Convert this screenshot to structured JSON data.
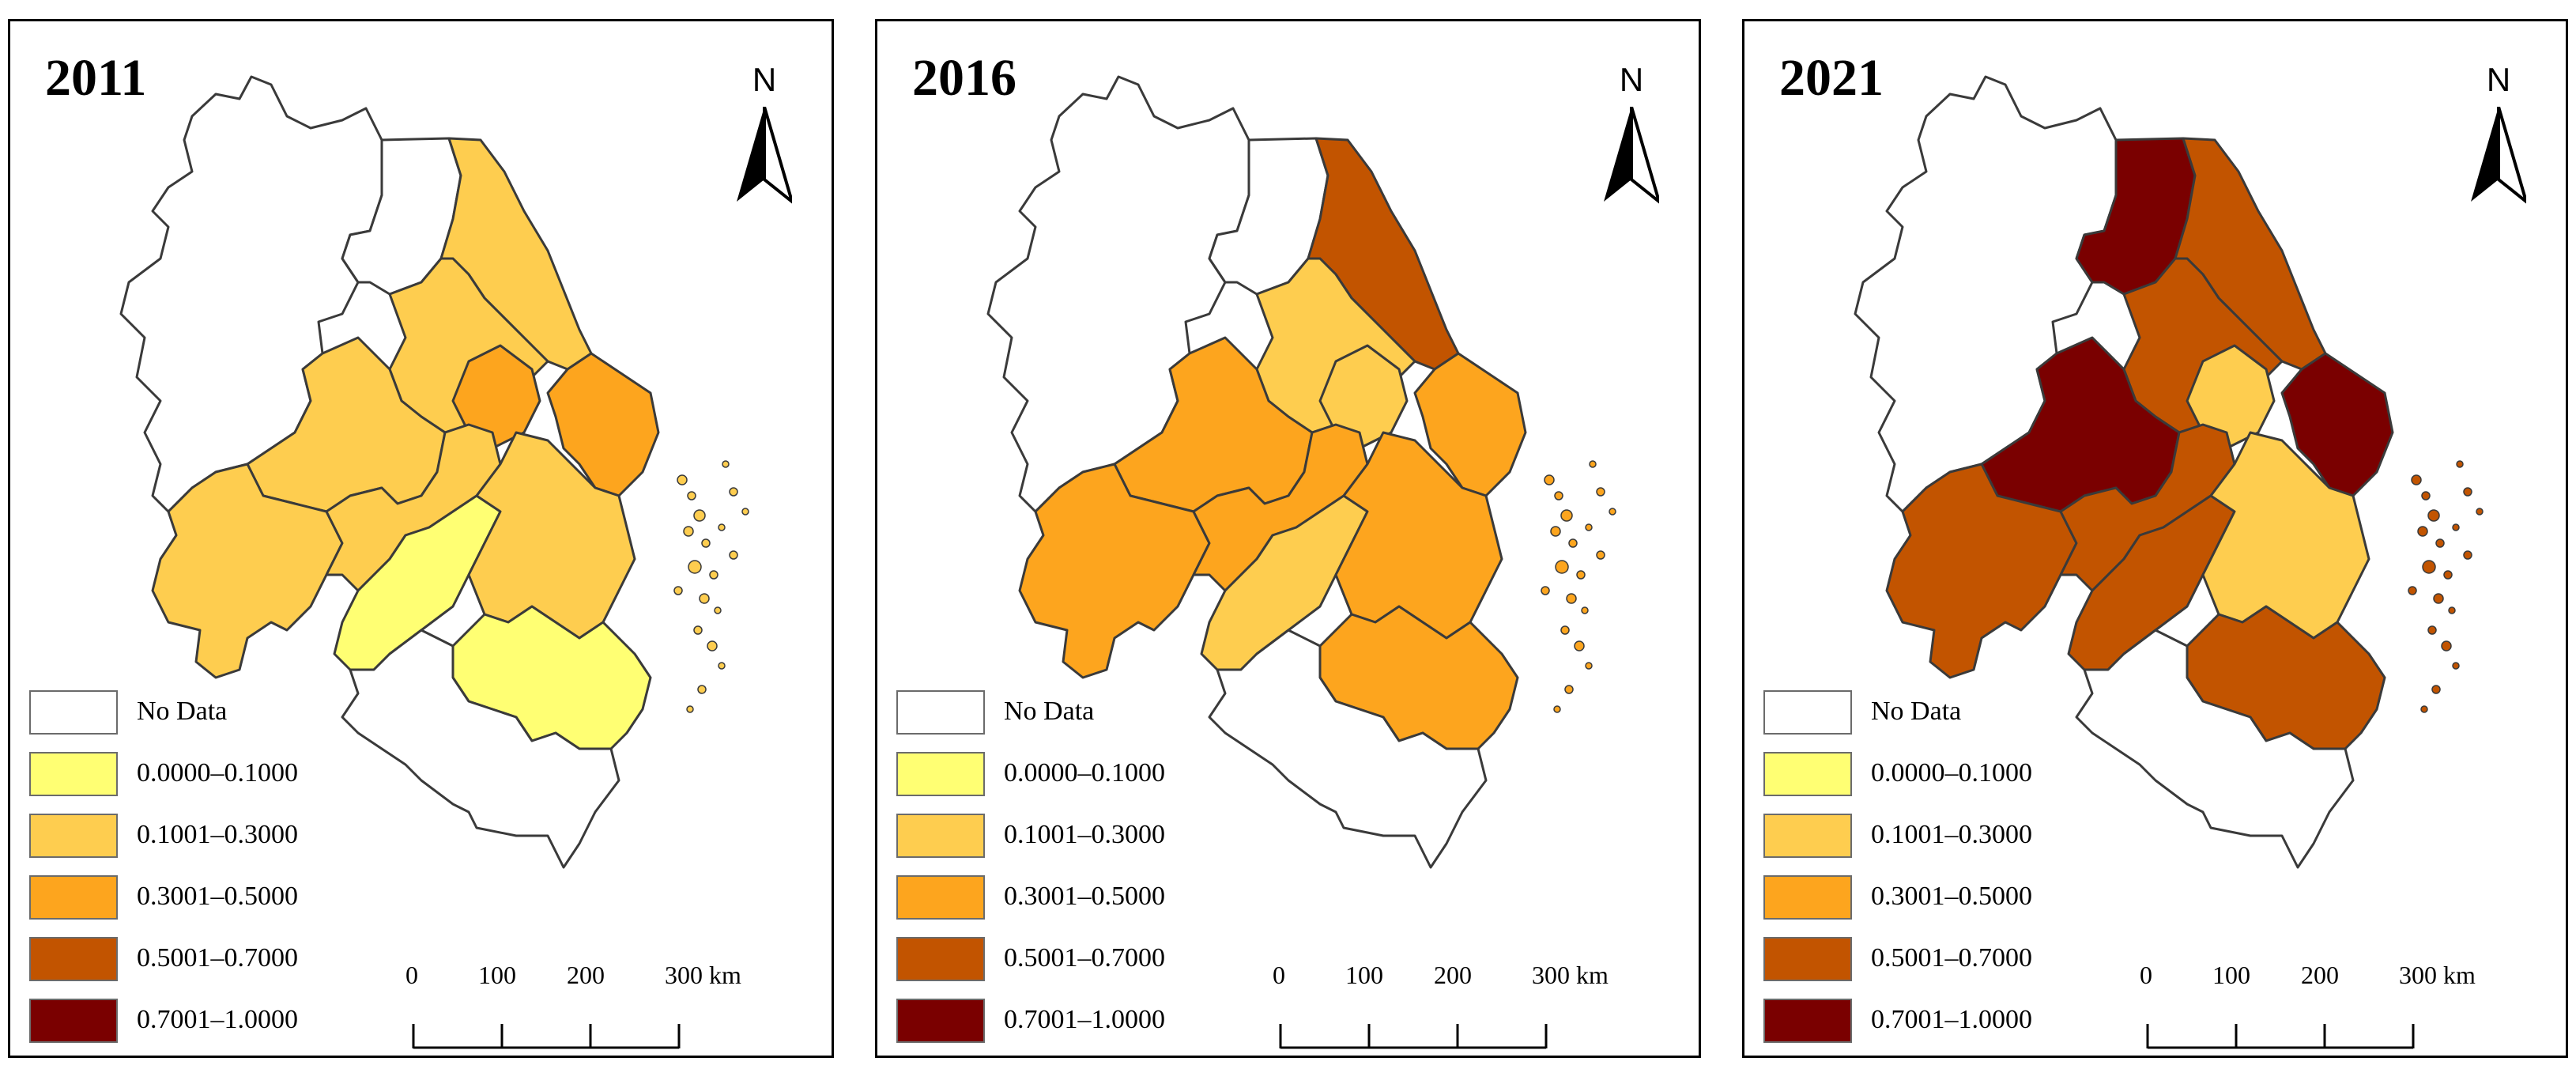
{
  "legend": {
    "items": [
      {
        "label": "No Data",
        "color": "#ffffff"
      },
      {
        "label": "0.0000–0.1000",
        "color": "#ffff73"
      },
      {
        "label": "0.1001–0.3000",
        "color": "#fecd4f"
      },
      {
        "label": "0.3001–0.5000",
        "color": "#fda51e"
      },
      {
        "label": "0.5001–0.7000",
        "color": "#c25400"
      },
      {
        "label": "0.7001–1.0000",
        "color": "#7a0000"
      }
    ]
  },
  "north_arrow": {
    "label": "N"
  },
  "scale_bar": {
    "ticks": [
      "0",
      "100",
      "200",
      "300 km"
    ]
  },
  "panels": [
    {
      "year": "2011",
      "regions": {
        "northwest": "No Data",
        "north_corridor": "No Data",
        "north_coast": "0.1001–0.3000",
        "center_north": "0.1001–0.3000",
        "center_core": "0.3001–0.5000",
        "east_coast": "0.3001–0.5000",
        "west": "0.1001–0.3000",
        "west_lower": "0.1001–0.3000",
        "central": "0.1001–0.3000",
        "central_south": "0.0000–0.1000",
        "southeast": "0.1001–0.3000",
        "south_coast": "0.0000–0.1000",
        "south": "No Data",
        "islands": "0.1001–0.3000"
      }
    },
    {
      "year": "2016",
      "regions": {
        "northwest": "No Data",
        "north_corridor": "No Data",
        "north_coast": "0.5001–0.7000",
        "center_north": "0.1001–0.3000",
        "center_core": "0.1001–0.3000",
        "east_coast": "0.3001–0.5000",
        "west": "0.3001–0.5000",
        "west_lower": "0.3001–0.5000",
        "central": "0.3001–0.5000",
        "central_south": "0.1001–0.3000",
        "southeast": "0.3001–0.5000",
        "south_coast": "0.3001–0.5000",
        "south": "No Data",
        "islands": "0.3001–0.5000"
      }
    },
    {
      "year": "2021",
      "regions": {
        "northwest": "No Data",
        "north_corridor": "0.7001–1.0000",
        "north_coast": "0.5001–0.7000",
        "center_north": "0.5001–0.7000",
        "center_core": "0.1001–0.3000",
        "east_coast": "0.7001–1.0000",
        "west": "0.7001–1.0000",
        "west_lower": "0.5001–0.7000",
        "central": "0.5001–0.7000",
        "central_south": "0.5001–0.7000",
        "southeast": "0.1001–0.3000",
        "south_coast": "0.5001–0.7000",
        "south": "No Data",
        "islands": "0.5001–0.7000"
      }
    }
  ]
}
